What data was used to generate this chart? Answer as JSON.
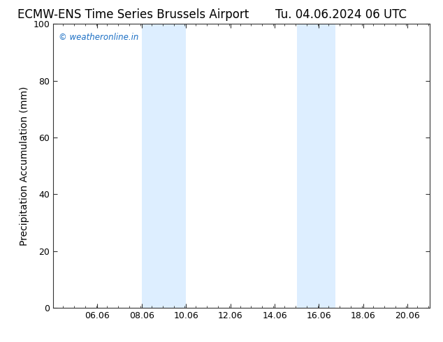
{
  "title_left": "ECMW-ENS Time Series Brussels Airport",
  "title_right": "Tu. 04.06.2024 06 UTC",
  "ylabel": "Precipitation Accumulation (mm)",
  "xlim": [
    4.06,
    21.06
  ],
  "ylim": [
    0,
    100
  ],
  "xticks": [
    6.06,
    8.06,
    10.06,
    12.06,
    14.06,
    16.06,
    18.06,
    20.06
  ],
  "xtick_labels": [
    "06.06",
    "08.06",
    "10.06",
    "12.06",
    "14.06",
    "16.06",
    "18.06",
    "20.06"
  ],
  "yticks": [
    0,
    20,
    40,
    60,
    80,
    100
  ],
  "shaded_bands": [
    {
      "x_start": 8.06,
      "x_end": 10.06,
      "color": "#ddeeff"
    },
    {
      "x_start": 15.06,
      "x_end": 16.8,
      "color": "#ddeeff"
    }
  ],
  "watermark_text": "© weatheronline.in",
  "watermark_color": "#1a6ec4",
  "bg_color": "#ffffff",
  "plot_bg_color": "#ffffff",
  "spine_color": "#333333",
  "tick_color": "#333333",
  "title_fontsize": 12,
  "tick_fontsize": 9,
  "ylabel_fontsize": 10
}
